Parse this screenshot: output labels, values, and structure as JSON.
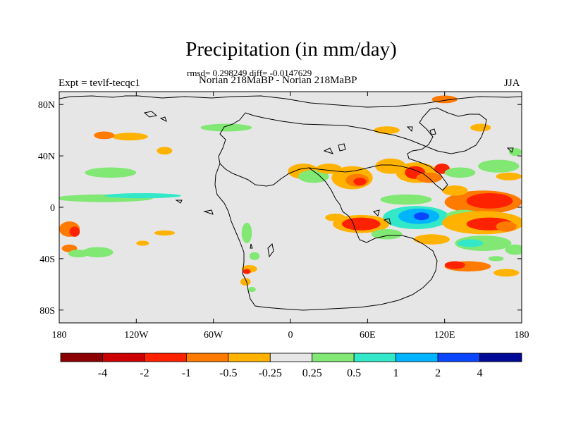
{
  "title": "Precipitation (in mm/day)",
  "stats": "rmsd= 0.298249 diff= -0.0147629",
  "subtitle": "Norian 218MaBP - Norian 218MaBP",
  "expt_label": "Expt = tevlf-tecqc1",
  "season": "JJA",
  "chart_data": {
    "type": "heatmap",
    "projection": "cylindrical equidistant",
    "variable": "precipitation difference",
    "units": "mm/day",
    "background_color": "#e6e6e6",
    "xaxis": {
      "range": [
        -180,
        180
      ],
      "ticks": [
        -180,
        -120,
        -60,
        0,
        60,
        120,
        180
      ],
      "tick_labels": [
        "180",
        "120W",
        "60W",
        "0",
        "60E",
        "120E",
        "180"
      ]
    },
    "yaxis": {
      "range": [
        -90,
        90
      ],
      "ticks": [
        80,
        40,
        0,
        -40,
        -80
      ],
      "tick_labels": [
        "80N",
        "40N",
        "0",
        "40S",
        "80S"
      ]
    },
    "colorbar": {
      "levels": [
        "-4",
        "-2",
        "-1",
        "-0.5",
        "-0.25",
        "0.25",
        "0.5",
        "1",
        "2",
        "4"
      ],
      "colors": [
        "#8b0000",
        "#cc0000",
        "#ff2200",
        "#ff7a00",
        "#ffb300",
        "#e6e6e6",
        "#80e873",
        "#33e8c8",
        "#00b4ff",
        "#0a46ff",
        "#000a96"
      ]
    },
    "anomalies": [
      {
        "lon": -172,
        "lat": -17,
        "rx": 8,
        "ry": 6,
        "color": "#ff7a00"
      },
      {
        "lon": -168,
        "lat": -19,
        "rx": 4,
        "ry": 4,
        "color": "#ff2200"
      },
      {
        "lon": -172,
        "lat": -32,
        "rx": 6,
        "ry": 3,
        "color": "#ff7a00"
      },
      {
        "lon": -150,
        "lat": -35,
        "rx": 12,
        "ry": 4,
        "color": "#80e873"
      },
      {
        "lon": -165,
        "lat": -36,
        "rx": 8,
        "ry": 3,
        "color": "#80e873"
      },
      {
        "lon": -115,
        "lat": -28,
        "rx": 5,
        "ry": 2,
        "color": "#ffb300"
      },
      {
        "lon": -98,
        "lat": -20,
        "rx": 8,
        "ry": 2,
        "color": "#ffb300"
      },
      {
        "lon": -140,
        "lat": 27,
        "rx": 20,
        "ry": 4,
        "color": "#80e873"
      },
      {
        "lon": -125,
        "lat": 55,
        "rx": 14,
        "ry": 3,
        "color": "#ffb300"
      },
      {
        "lon": -50,
        "lat": 62,
        "rx": 20,
        "ry": 3,
        "color": "#80e873"
      },
      {
        "lon": -145,
        "lat": 56,
        "rx": 8,
        "ry": 3,
        "color": "#ff7a00"
      },
      {
        "lon": -98,
        "lat": 44,
        "rx": 6,
        "ry": 3,
        "color": "#ffb300"
      },
      {
        "lon": -145,
        "lat": 7,
        "rx": 38,
        "ry": 3,
        "color": "#80e873"
      },
      {
        "lon": -115,
        "lat": 9,
        "rx": 30,
        "ry": 2,
        "color": "#33e8c8"
      },
      {
        "lon": -34,
        "lat": -20,
        "rx": 4,
        "ry": 8,
        "color": "#80e873"
      },
      {
        "lon": -32,
        "lat": -48,
        "rx": 6,
        "ry": 3,
        "color": "#ffb300"
      },
      {
        "lon": -34,
        "lat": -50,
        "rx": 3,
        "ry": 2,
        "color": "#ff2200"
      },
      {
        "lon": -35,
        "lat": -58,
        "rx": 4,
        "ry": 3,
        "color": "#ffb300"
      },
      {
        "lon": -30,
        "lat": -64,
        "rx": 3,
        "ry": 2,
        "color": "#80e873"
      },
      {
        "lon": -28,
        "lat": -38,
        "rx": 4,
        "ry": 3,
        "color": "#80e873"
      },
      {
        "lon": 48,
        "lat": 23,
        "rx": 16,
        "ry": 9,
        "color": "#ffb300"
      },
      {
        "lon": 52,
        "lat": 21,
        "rx": 9,
        "ry": 5,
        "color": "#ff7a00"
      },
      {
        "lon": 54,
        "lat": 20,
        "rx": 5,
        "ry": 3,
        "color": "#ff2200"
      },
      {
        "lon": 10,
        "lat": 28,
        "rx": 12,
        "ry": 6,
        "color": "#ffb300"
      },
      {
        "lon": 18,
        "lat": 24,
        "rx": 12,
        "ry": 5,
        "color": "#80e873"
      },
      {
        "lon": 30,
        "lat": 30,
        "rx": 10,
        "ry": 4,
        "color": "#ffb300"
      },
      {
        "lon": 78,
        "lat": 32,
        "rx": 12,
        "ry": 6,
        "color": "#ffb300"
      },
      {
        "lon": 98,
        "lat": 27,
        "rx": 16,
        "ry": 8,
        "color": "#ffb300"
      },
      {
        "lon": 97,
        "lat": 27,
        "rx": 8,
        "ry": 5,
        "color": "#ff2200"
      },
      {
        "lon": 108,
        "lat": 23,
        "rx": 10,
        "ry": 4,
        "color": "#ff7a00"
      },
      {
        "lon": 118,
        "lat": 30,
        "rx": 6,
        "ry": 4,
        "color": "#ff2200"
      },
      {
        "lon": 132,
        "lat": 27,
        "rx": 12,
        "ry": 4,
        "color": "#80e873"
      },
      {
        "lon": 162,
        "lat": 32,
        "rx": 16,
        "ry": 5,
        "color": "#80e873"
      },
      {
        "lon": 170,
        "lat": 24,
        "rx": 10,
        "ry": 3,
        "color": "#ffb300"
      },
      {
        "lon": 175,
        "lat": 43,
        "rx": 5,
        "ry": 3,
        "color": "#80e873"
      },
      {
        "lon": 120,
        "lat": 84,
        "rx": 10,
        "ry": 3,
        "color": "#ff7a00"
      },
      {
        "lon": 75,
        "lat": 60,
        "rx": 10,
        "ry": 3,
        "color": "#ffb300"
      },
      {
        "lon": 148,
        "lat": 62,
        "rx": 8,
        "ry": 3,
        "color": "#ffb300"
      },
      {
        "lon": 150,
        "lat": 4,
        "rx": 30,
        "ry": 9,
        "color": "#ff7a00"
      },
      {
        "lon": 155,
        "lat": 5,
        "rx": 18,
        "ry": 6,
        "color": "#ff2200"
      },
      {
        "lon": 128,
        "lat": 13,
        "rx": 10,
        "ry": 4,
        "color": "#ffb300"
      },
      {
        "lon": 90,
        "lat": 6,
        "rx": 20,
        "ry": 4,
        "color": "#80e873"
      },
      {
        "lon": 98,
        "lat": -8,
        "rx": 26,
        "ry": 9,
        "color": "#33e8c8"
      },
      {
        "lon": 100,
        "lat": -7,
        "rx": 16,
        "ry": 6,
        "color": "#00b4ff"
      },
      {
        "lon": 102,
        "lat": -7,
        "rx": 6,
        "ry": 3,
        "color": "#0a46ff"
      },
      {
        "lon": 135,
        "lat": -7,
        "rx": 14,
        "ry": 5,
        "color": "#80e873"
      },
      {
        "lon": 55,
        "lat": -13,
        "rx": 22,
        "ry": 7,
        "color": "#ffb300"
      },
      {
        "lon": 55,
        "lat": -13,
        "rx": 15,
        "ry": 5,
        "color": "#ff2200"
      },
      {
        "lon": 35,
        "lat": -8,
        "rx": 8,
        "ry": 3,
        "color": "#ffb300"
      },
      {
        "lon": 150,
        "lat": -12,
        "rx": 32,
        "ry": 9,
        "color": "#ffb300"
      },
      {
        "lon": 155,
        "lat": -13,
        "rx": 18,
        "ry": 5,
        "color": "#ff2200"
      },
      {
        "lon": 168,
        "lat": -15,
        "rx": 8,
        "ry": 4,
        "color": "#ff7a00"
      },
      {
        "lon": 110,
        "lat": -25,
        "rx": 14,
        "ry": 4,
        "color": "#ffb300"
      },
      {
        "lon": 150,
        "lat": -28,
        "rx": 22,
        "ry": 6,
        "color": "#80e873"
      },
      {
        "lon": 140,
        "lat": -28,
        "rx": 10,
        "ry": 3,
        "color": "#33e8c8"
      },
      {
        "lon": 175,
        "lat": -33,
        "rx": 8,
        "ry": 4,
        "color": "#80e873"
      },
      {
        "lon": 75,
        "lat": -21,
        "rx": 12,
        "ry": 4,
        "color": "#80e873"
      },
      {
        "lon": 138,
        "lat": -46,
        "rx": 18,
        "ry": 4,
        "color": "#ff7a00"
      },
      {
        "lon": 128,
        "lat": -45,
        "rx": 8,
        "ry": 3,
        "color": "#ff2200"
      },
      {
        "lon": 168,
        "lat": -51,
        "rx": 10,
        "ry": 3,
        "color": "#ffb300"
      },
      {
        "lon": 160,
        "lat": -40,
        "rx": 6,
        "ry": 2,
        "color": "#80e873"
      }
    ]
  }
}
